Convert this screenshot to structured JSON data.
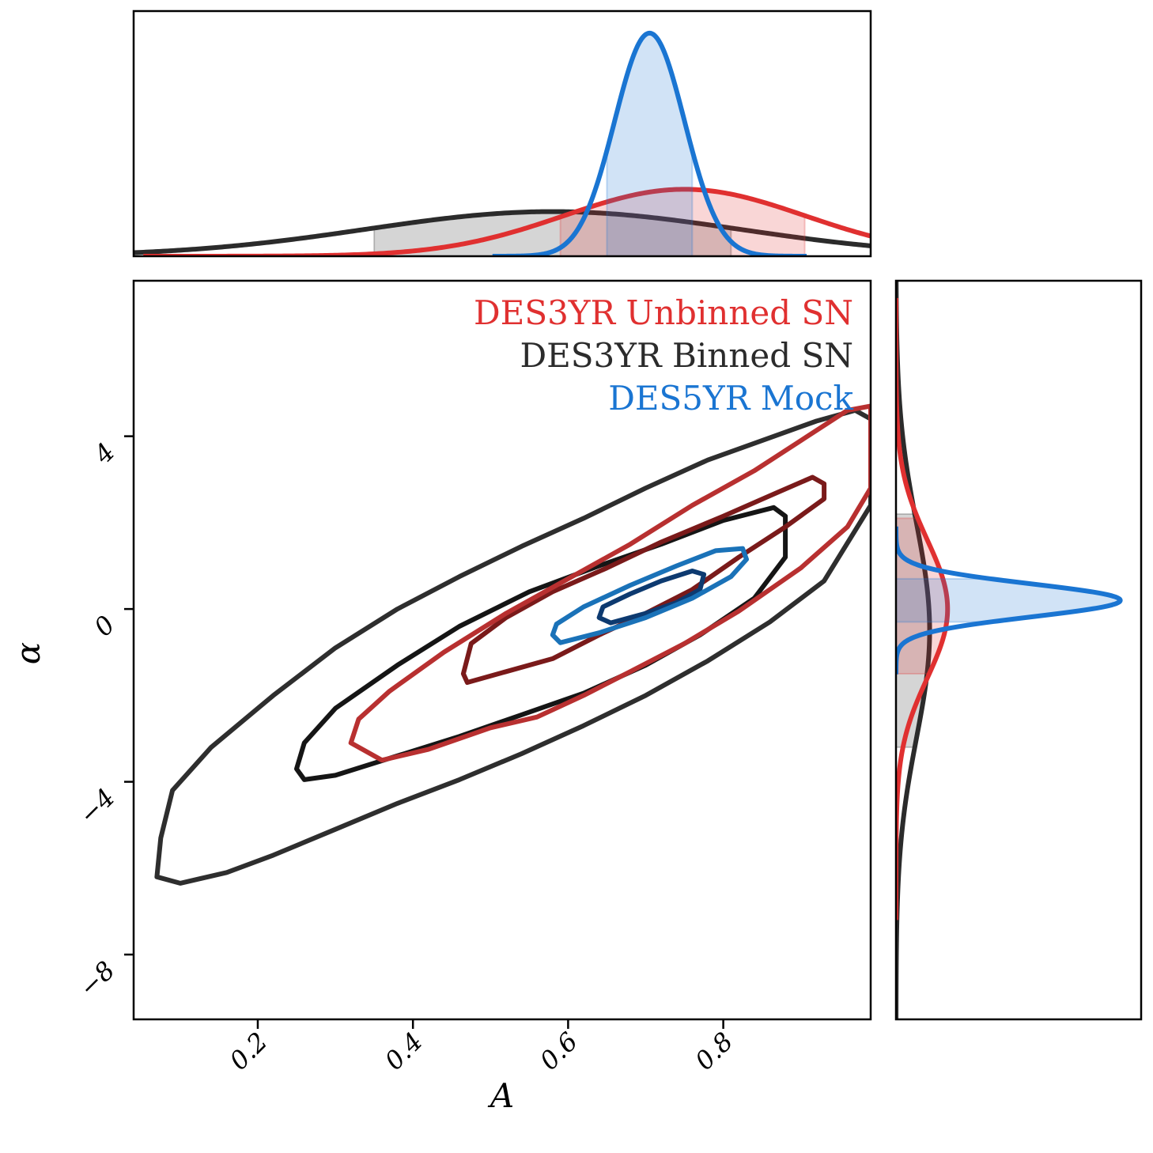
{
  "chart_data": {
    "type": "corner",
    "xlabel": "A",
    "ylabel": "α",
    "xlim": [
      0.04,
      0.99
    ],
    "ylim": [
      -9.5,
      7.6
    ],
    "xticks": [
      0.2,
      0.4,
      0.6,
      0.8
    ],
    "xtick_labels": [
      "0.2",
      "0.4",
      "0.6",
      "0.8"
    ],
    "yticks": [
      4,
      0,
      -4,
      -8
    ],
    "ytick_labels": [
      "4",
      "0",
      "−4",
      "−8"
    ],
    "legend_placement": "top-right",
    "series": [
      {
        "name": "DES3YR Unbinned SN",
        "color": "#e03030",
        "contour_colors": [
          "#7a1a1a",
          "#b83030"
        ],
        "marginal_A": {
          "mean": 0.75,
          "sigma": 0.155,
          "peak": 0.3,
          "band": [
            0.59,
            0.905
          ]
        },
        "marginal_alpha": {
          "mean": 0.0,
          "sigma": 1.6,
          "peak": 0.23,
          "band": [
            -1.5,
            2.1
          ]
        },
        "contours": [
          [
            [
              0.47,
              -1.7
            ],
            [
              0.52,
              -1.45
            ],
            [
              0.58,
              -1.15
            ],
            [
              0.64,
              -0.6
            ],
            [
              0.7,
              -0.1
            ],
            [
              0.76,
              0.45
            ],
            [
              0.82,
              1.2
            ],
            [
              0.88,
              1.9
            ],
            [
              0.93,
              2.55
            ],
            [
              0.93,
              2.9
            ],
            [
              0.915,
              3.05
            ],
            [
              0.87,
              2.7
            ],
            [
              0.8,
              2.15
            ],
            [
              0.72,
              1.55
            ],
            [
              0.65,
              0.95
            ],
            [
              0.58,
              0.4
            ],
            [
              0.52,
              -0.2
            ],
            [
              0.475,
              -0.8
            ],
            [
              0.465,
              -1.5
            ]
          ],
          [
            [
              0.32,
              -3.1
            ],
            [
              0.36,
              -3.5
            ],
            [
              0.42,
              -3.25
            ],
            [
              0.5,
              -2.75
            ],
            [
              0.56,
              -2.5
            ],
            [
              0.62,
              -2.0
            ],
            [
              0.68,
              -1.45
            ],
            [
              0.75,
              -0.8
            ],
            [
              0.82,
              -0.05
            ],
            [
              0.9,
              0.95
            ],
            [
              0.96,
              1.9
            ],
            [
              0.99,
              2.8
            ],
            [
              0.99,
              4.7
            ],
            [
              0.96,
              4.6
            ],
            [
              0.9,
              3.9
            ],
            [
              0.84,
              3.2
            ],
            [
              0.76,
              2.4
            ],
            [
              0.68,
              1.5
            ],
            [
              0.6,
              0.7
            ],
            [
              0.52,
              -0.1
            ],
            [
              0.44,
              -1.0
            ],
            [
              0.37,
              -1.9
            ],
            [
              0.33,
              -2.55
            ]
          ]
        ]
      },
      {
        "name": "DES3YR Binned SN",
        "color": "#2b2b2b",
        "contour_colors": [
          "#151515",
          "#2e2e2e"
        ],
        "marginal_A": {
          "mean": 0.58,
          "sigma": 0.24,
          "peak": 0.2,
          "band": [
            0.35,
            0.81
          ]
        },
        "marginal_alpha": {
          "mean": -0.5,
          "sigma": 2.5,
          "peak": 0.15,
          "band": [
            -3.2,
            2.2
          ]
        },
        "contours": [
          [
            [
              0.25,
              -3.7
            ],
            [
              0.26,
              -3.95
            ],
            [
              0.3,
              -3.85
            ],
            [
              0.38,
              -3.4
            ],
            [
              0.46,
              -2.95
            ],
            [
              0.54,
              -2.45
            ],
            [
              0.62,
              -1.95
            ],
            [
              0.7,
              -1.3
            ],
            [
              0.77,
              -0.6
            ],
            [
              0.84,
              0.25
            ],
            [
              0.88,
              1.2
            ],
            [
              0.88,
              2.15
            ],
            [
              0.865,
              2.35
            ],
            [
              0.8,
              2.05
            ],
            [
              0.72,
              1.5
            ],
            [
              0.64,
              1.0
            ],
            [
              0.55,
              0.4
            ],
            [
              0.46,
              -0.4
            ],
            [
              0.38,
              -1.3
            ],
            [
              0.3,
              -2.3
            ],
            [
              0.26,
              -3.1
            ]
          ],
          [
            [
              0.075,
              -5.3
            ],
            [
              0.07,
              -6.2
            ],
            [
              0.1,
              -6.35
            ],
            [
              0.16,
              -6.1
            ],
            [
              0.22,
              -5.7
            ],
            [
              0.3,
              -5.1
            ],
            [
              0.38,
              -4.5
            ],
            [
              0.46,
              -3.95
            ],
            [
              0.54,
              -3.35
            ],
            [
              0.62,
              -2.7
            ],
            [
              0.7,
              -2.0
            ],
            [
              0.78,
              -1.2
            ],
            [
              0.86,
              -0.3
            ],
            [
              0.93,
              0.65
            ],
            [
              0.99,
              2.4
            ],
            [
              0.99,
              4.4
            ],
            [
              0.97,
              4.6
            ],
            [
              0.92,
              4.35
            ],
            [
              0.85,
              3.9
            ],
            [
              0.78,
              3.45
            ],
            [
              0.7,
              2.8
            ],
            [
              0.62,
              2.1
            ],
            [
              0.54,
              1.45
            ],
            [
              0.46,
              0.75
            ],
            [
              0.38,
              0.0
            ],
            [
              0.3,
              -0.9
            ],
            [
              0.22,
              -2.0
            ],
            [
              0.14,
              -3.2
            ],
            [
              0.09,
              -4.2
            ]
          ]
        ]
      },
      {
        "name": "DES5YR Mock",
        "color": "#1a75d2",
        "contour_colors": [
          "#0d3a70",
          "#1a72b8"
        ],
        "marginal_A": {
          "mean": 0.705,
          "sigma": 0.045,
          "peak": 1.0,
          "band": [
            0.65,
            0.76
          ]
        },
        "marginal_alpha": {
          "mean": 0.2,
          "sigma": 0.38,
          "peak": 1.0,
          "band": [
            -0.3,
            0.7
          ]
        },
        "contours": [
          [
            [
              0.64,
              -0.2
            ],
            [
              0.655,
              -0.32
            ],
            [
              0.7,
              -0.1
            ],
            [
              0.74,
              0.15
            ],
            [
              0.77,
              0.45
            ],
            [
              0.775,
              0.8
            ],
            [
              0.76,
              0.88
            ],
            [
              0.72,
              0.65
            ],
            [
              0.68,
              0.35
            ],
            [
              0.645,
              0.05
            ]
          ],
          [
            [
              0.58,
              -0.6
            ],
            [
              0.59,
              -0.78
            ],
            [
              0.64,
              -0.55
            ],
            [
              0.7,
              -0.2
            ],
            [
              0.76,
              0.25
            ],
            [
              0.81,
              0.75
            ],
            [
              0.83,
              1.15
            ],
            [
              0.825,
              1.4
            ],
            [
              0.79,
              1.35
            ],
            [
              0.74,
              1.0
            ],
            [
              0.68,
              0.55
            ],
            [
              0.62,
              0.05
            ],
            [
              0.585,
              -0.35
            ]
          ]
        ]
      }
    ]
  }
}
